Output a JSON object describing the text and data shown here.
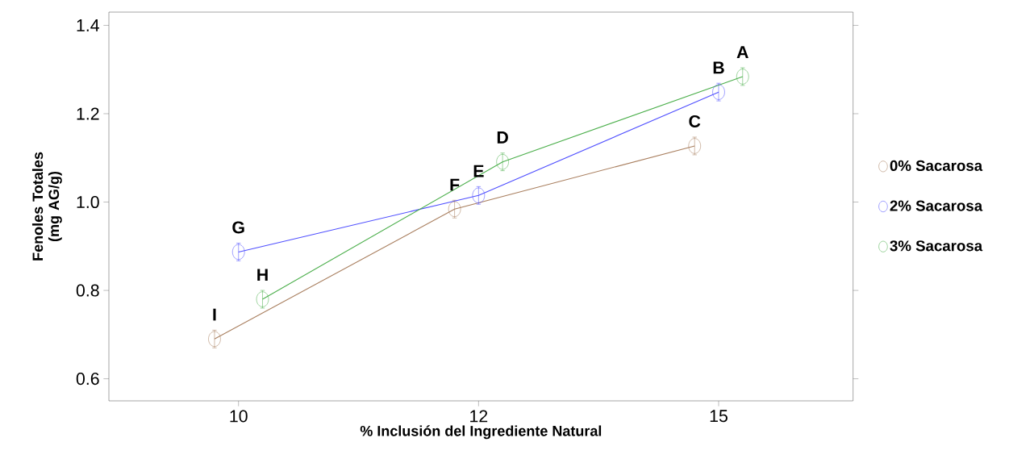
{
  "chart_data": {
    "type": "line",
    "xlabel": "% Inclusión del Ingrediente Natural",
    "ylabel": "Fenoles Totales (mg AG/g)",
    "categories": [
      "10",
      "12",
      "15"
    ],
    "series": [
      {
        "name": "0% Sacarosa",
        "color": "#a97f5f",
        "values": [
          0.69,
          0.984,
          1.127
        ],
        "errors": [
          0.02,
          0.02,
          0.02
        ],
        "value_labels": [
          "I",
          "F",
          "C"
        ]
      },
      {
        "name": "2% Sacarosa",
        "color": "#4f4fff",
        "values": [
          0.887,
          1.015,
          1.249
        ],
        "errors": [
          0.02,
          0.02,
          0.02
        ],
        "value_labels": [
          "G",
          "E",
          "B"
        ]
      },
      {
        "name": "3% Sacarosa",
        "color": "#4caf4c",
        "values": [
          0.78,
          1.091,
          1.284
        ],
        "errors": [
          0.02,
          0.02,
          0.02
        ],
        "value_labels": [
          "H",
          "D",
          "A"
        ]
      }
    ],
    "ylim": [
      0.55,
      1.43
    ],
    "yticks": [
      0.6,
      0.8,
      {
        "value": 1.0,
        "label": "1.0"
      },
      1.2,
      1.4
    ],
    "marker": "circle",
    "line_style": "solid",
    "grid": false,
    "legend": "right"
  }
}
